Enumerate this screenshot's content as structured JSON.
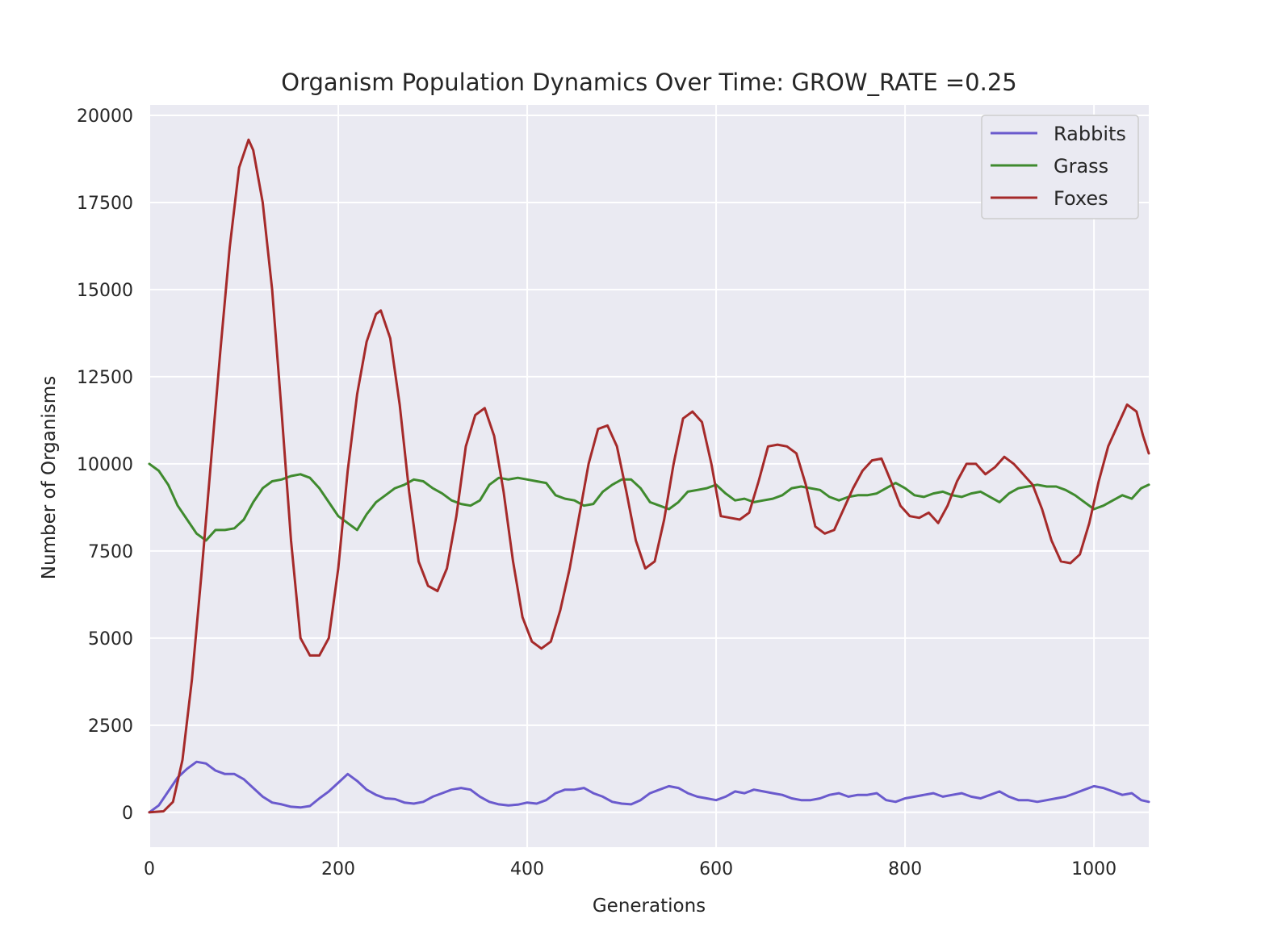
{
  "chart_data": {
    "type": "line",
    "title": "Organism Population Dynamics Over Time: GROW_RATE =0.25",
    "xlabel": "Generations",
    "ylabel": "Number of Organisms",
    "xlim": [
      0,
      1058
    ],
    "ylim": [
      -1000,
      20300
    ],
    "x_ticks": [
      0,
      200,
      400,
      600,
      800,
      1000
    ],
    "y_ticks": [
      0,
      2500,
      5000,
      7500,
      10000,
      12500,
      15000,
      17500,
      20000
    ],
    "grid": true,
    "legend_position": "top-right",
    "series": [
      {
        "name": "Rabbits",
        "color": "#6a5acd",
        "points": [
          [
            0,
            0
          ],
          [
            10,
            200
          ],
          [
            20,
            600
          ],
          [
            30,
            1000
          ],
          [
            40,
            1250
          ],
          [
            50,
            1450
          ],
          [
            60,
            1400
          ],
          [
            70,
            1200
          ],
          [
            80,
            1100
          ],
          [
            90,
            1100
          ],
          [
            100,
            950
          ],
          [
            110,
            700
          ],
          [
            120,
            450
          ],
          [
            130,
            280
          ],
          [
            140,
            230
          ],
          [
            150,
            160
          ],
          [
            160,
            140
          ],
          [
            170,
            180
          ],
          [
            180,
            400
          ],
          [
            190,
            600
          ],
          [
            200,
            850
          ],
          [
            210,
            1100
          ],
          [
            220,
            900
          ],
          [
            230,
            650
          ],
          [
            240,
            500
          ],
          [
            250,
            400
          ],
          [
            260,
            380
          ],
          [
            270,
            280
          ],
          [
            280,
            250
          ],
          [
            290,
            300
          ],
          [
            300,
            450
          ],
          [
            310,
            550
          ],
          [
            320,
            650
          ],
          [
            330,
            700
          ],
          [
            340,
            650
          ],
          [
            350,
            450
          ],
          [
            360,
            300
          ],
          [
            370,
            230
          ],
          [
            380,
            200
          ],
          [
            390,
            220
          ],
          [
            400,
            280
          ],
          [
            410,
            250
          ],
          [
            420,
            350
          ],
          [
            430,
            550
          ],
          [
            440,
            650
          ],
          [
            450,
            650
          ],
          [
            460,
            700
          ],
          [
            470,
            550
          ],
          [
            480,
            450
          ],
          [
            490,
            300
          ],
          [
            500,
            250
          ],
          [
            510,
            230
          ],
          [
            520,
            350
          ],
          [
            530,
            550
          ],
          [
            540,
            650
          ],
          [
            550,
            750
          ],
          [
            560,
            700
          ],
          [
            570,
            550
          ],
          [
            580,
            450
          ],
          [
            590,
            400
          ],
          [
            600,
            350
          ],
          [
            610,
            450
          ],
          [
            620,
            600
          ],
          [
            630,
            550
          ],
          [
            640,
            650
          ],
          [
            650,
            600
          ],
          [
            660,
            550
          ],
          [
            670,
            500
          ],
          [
            680,
            400
          ],
          [
            690,
            350
          ],
          [
            700,
            350
          ],
          [
            710,
            400
          ],
          [
            720,
            500
          ],
          [
            730,
            550
          ],
          [
            740,
            450
          ],
          [
            750,
            500
          ],
          [
            760,
            500
          ],
          [
            770,
            550
          ],
          [
            780,
            350
          ],
          [
            790,
            300
          ],
          [
            800,
            400
          ],
          [
            810,
            450
          ],
          [
            820,
            500
          ],
          [
            830,
            550
          ],
          [
            840,
            450
          ],
          [
            850,
            500
          ],
          [
            860,
            550
          ],
          [
            870,
            450
          ],
          [
            880,
            400
          ],
          [
            890,
            500
          ],
          [
            900,
            600
          ],
          [
            910,
            450
          ],
          [
            920,
            350
          ],
          [
            930,
            350
          ],
          [
            940,
            300
          ],
          [
            950,
            350
          ],
          [
            960,
            400
          ],
          [
            970,
            450
          ],
          [
            980,
            550
          ],
          [
            990,
            650
          ],
          [
            1000,
            750
          ],
          [
            1010,
            700
          ],
          [
            1020,
            600
          ],
          [
            1030,
            500
          ],
          [
            1040,
            550
          ],
          [
            1050,
            350
          ],
          [
            1058,
            300
          ]
        ]
      },
      {
        "name": "Grass",
        "color": "#3f8a2e",
        "points": [
          [
            0,
            10000
          ],
          [
            10,
            9800
          ],
          [
            20,
            9400
          ],
          [
            30,
            8800
          ],
          [
            40,
            8400
          ],
          [
            50,
            8000
          ],
          [
            60,
            7800
          ],
          [
            70,
            8100
          ],
          [
            80,
            8100
          ],
          [
            90,
            8150
          ],
          [
            100,
            8400
          ],
          [
            110,
            8900
          ],
          [
            120,
            9300
          ],
          [
            130,
            9500
          ],
          [
            140,
            9550
          ],
          [
            150,
            9650
          ],
          [
            160,
            9700
          ],
          [
            170,
            9600
          ],
          [
            180,
            9300
          ],
          [
            190,
            8900
          ],
          [
            200,
            8500
          ],
          [
            210,
            8300
          ],
          [
            220,
            8100
          ],
          [
            230,
            8550
          ],
          [
            240,
            8900
          ],
          [
            250,
            9100
          ],
          [
            260,
            9300
          ],
          [
            270,
            9400
          ],
          [
            280,
            9550
          ],
          [
            290,
            9500
          ],
          [
            300,
            9300
          ],
          [
            310,
            9150
          ],
          [
            320,
            8950
          ],
          [
            330,
            8850
          ],
          [
            340,
            8800
          ],
          [
            350,
            8950
          ],
          [
            360,
            9400
          ],
          [
            370,
            9600
          ],
          [
            380,
            9550
          ],
          [
            390,
            9600
          ],
          [
            400,
            9550
          ],
          [
            410,
            9500
          ],
          [
            420,
            9450
          ],
          [
            430,
            9100
          ],
          [
            440,
            9000
          ],
          [
            450,
            8950
          ],
          [
            460,
            8800
          ],
          [
            470,
            8850
          ],
          [
            480,
            9200
          ],
          [
            490,
            9400
          ],
          [
            500,
            9550
          ],
          [
            510,
            9550
          ],
          [
            520,
            9300
          ],
          [
            530,
            8900
          ],
          [
            540,
            8800
          ],
          [
            550,
            8700
          ],
          [
            560,
            8900
          ],
          [
            570,
            9200
          ],
          [
            580,
            9250
          ],
          [
            590,
            9300
          ],
          [
            600,
            9400
          ],
          [
            610,
            9150
          ],
          [
            620,
            8950
          ],
          [
            630,
            9000
          ],
          [
            640,
            8900
          ],
          [
            650,
            8950
          ],
          [
            660,
            9000
          ],
          [
            670,
            9100
          ],
          [
            680,
            9300
          ],
          [
            690,
            9350
          ],
          [
            700,
            9300
          ],
          [
            710,
            9250
          ],
          [
            720,
            9050
          ],
          [
            730,
            8950
          ],
          [
            740,
            9050
          ],
          [
            750,
            9100
          ],
          [
            760,
            9100
          ],
          [
            770,
            9150
          ],
          [
            780,
            9300
          ],
          [
            790,
            9450
          ],
          [
            800,
            9300
          ],
          [
            810,
            9100
          ],
          [
            820,
            9050
          ],
          [
            830,
            9150
          ],
          [
            840,
            9200
          ],
          [
            850,
            9100
          ],
          [
            860,
            9050
          ],
          [
            870,
            9150
          ],
          [
            880,
            9200
          ],
          [
            890,
            9050
          ],
          [
            900,
            8900
          ],
          [
            910,
            9150
          ],
          [
            920,
            9300
          ],
          [
            930,
            9350
          ],
          [
            940,
            9400
          ],
          [
            950,
            9350
          ],
          [
            960,
            9350
          ],
          [
            970,
            9250
          ],
          [
            980,
            9100
          ],
          [
            990,
            8900
          ],
          [
            1000,
            8700
          ],
          [
            1010,
            8800
          ],
          [
            1020,
            8950
          ],
          [
            1030,
            9100
          ],
          [
            1040,
            9000
          ],
          [
            1050,
            9300
          ],
          [
            1058,
            9400
          ]
        ]
      },
      {
        "name": "Foxes",
        "color": "#a52a2a",
        "points": [
          [
            0,
            0
          ],
          [
            15,
            30
          ],
          [
            25,
            300
          ],
          [
            35,
            1500
          ],
          [
            45,
            3800
          ],
          [
            55,
            6800
          ],
          [
            65,
            10000
          ],
          [
            75,
            13200
          ],
          [
            85,
            16200
          ],
          [
            95,
            18500
          ],
          [
            105,
            19300
          ],
          [
            110,
            19000
          ],
          [
            120,
            17500
          ],
          [
            130,
            15000
          ],
          [
            140,
            11500
          ],
          [
            150,
            7800
          ],
          [
            160,
            5000
          ],
          [
            170,
            4500
          ],
          [
            180,
            4500
          ],
          [
            190,
            5000
          ],
          [
            200,
            7000
          ],
          [
            210,
            9800
          ],
          [
            220,
            12000
          ],
          [
            230,
            13500
          ],
          [
            240,
            14300
          ],
          [
            245,
            14400
          ],
          [
            255,
            13600
          ],
          [
            265,
            11700
          ],
          [
            275,
            9200
          ],
          [
            285,
            7200
          ],
          [
            295,
            6500
          ],
          [
            305,
            6350
          ],
          [
            315,
            7000
          ],
          [
            325,
            8500
          ],
          [
            335,
            10500
          ],
          [
            345,
            11400
          ],
          [
            355,
            11600
          ],
          [
            365,
            10800
          ],
          [
            375,
            9200
          ],
          [
            385,
            7200
          ],
          [
            395,
            5600
          ],
          [
            405,
            4900
          ],
          [
            415,
            4700
          ],
          [
            425,
            4900
          ],
          [
            435,
            5800
          ],
          [
            445,
            7000
          ],
          [
            455,
            8500
          ],
          [
            465,
            10000
          ],
          [
            475,
            11000
          ],
          [
            485,
            11100
          ],
          [
            495,
            10500
          ],
          [
            505,
            9200
          ],
          [
            515,
            7800
          ],
          [
            525,
            7000
          ],
          [
            535,
            7200
          ],
          [
            545,
            8400
          ],
          [
            555,
            10000
          ],
          [
            565,
            11300
          ],
          [
            575,
            11500
          ],
          [
            585,
            11200
          ],
          [
            595,
            10000
          ],
          [
            605,
            8500
          ],
          [
            615,
            8450
          ],
          [
            625,
            8400
          ],
          [
            635,
            8600
          ],
          [
            645,
            9500
          ],
          [
            655,
            10500
          ],
          [
            665,
            10550
          ],
          [
            675,
            10500
          ],
          [
            685,
            10300
          ],
          [
            695,
            9400
          ],
          [
            705,
            8200
          ],
          [
            715,
            8000
          ],
          [
            725,
            8100
          ],
          [
            735,
            8700
          ],
          [
            745,
            9300
          ],
          [
            755,
            9800
          ],
          [
            765,
            10100
          ],
          [
            775,
            10150
          ],
          [
            785,
            9500
          ],
          [
            795,
            8800
          ],
          [
            805,
            8500
          ],
          [
            815,
            8450
          ],
          [
            825,
            8600
          ],
          [
            835,
            8300
          ],
          [
            845,
            8800
          ],
          [
            855,
            9500
          ],
          [
            865,
            10000
          ],
          [
            875,
            10000
          ],
          [
            885,
            9700
          ],
          [
            895,
            9900
          ],
          [
            905,
            10200
          ],
          [
            915,
            10000
          ],
          [
            925,
            9700
          ],
          [
            935,
            9400
          ],
          [
            945,
            8700
          ],
          [
            955,
            7800
          ],
          [
            965,
            7200
          ],
          [
            975,
            7150
          ],
          [
            985,
            7400
          ],
          [
            995,
            8300
          ],
          [
            1005,
            9500
          ],
          [
            1015,
            10500
          ],
          [
            1025,
            11100
          ],
          [
            1035,
            11700
          ],
          [
            1045,
            11500
          ],
          [
            1052,
            10800
          ],
          [
            1058,
            10300
          ]
        ]
      }
    ]
  }
}
